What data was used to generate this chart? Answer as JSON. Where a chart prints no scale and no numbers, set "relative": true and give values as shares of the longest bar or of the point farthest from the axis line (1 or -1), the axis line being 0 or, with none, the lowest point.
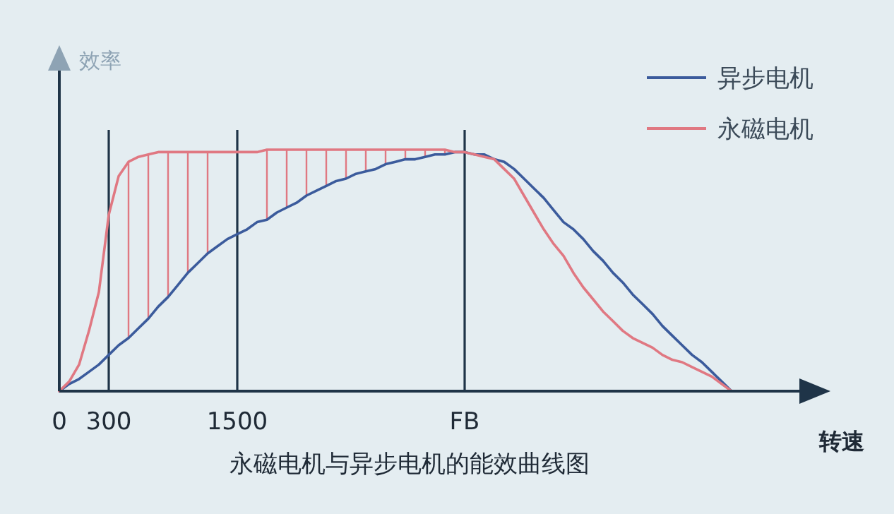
{
  "chart_data": {
    "type": "line",
    "title": "永磁电机与异步电机的能效曲线图",
    "xlabel": "转速",
    "ylabel": "效率",
    "relative": true,
    "tick_labels": "x",
    "legend": "top right",
    "categories": [
      "0",
      null,
      null,
      null,
      null,
      "300",
      null,
      null,
      null,
      null,
      null,
      null,
      null,
      null,
      null,
      null,
      null,
      null,
      "1500",
      null,
      null,
      null,
      null,
      null,
      null,
      null,
      null,
      null,
      null,
      null,
      null,
      null,
      null,
      null,
      null,
      null,
      null,
      null,
      null,
      null,
      null,
      "FB",
      null,
      null,
      null,
      null,
      null,
      null,
      null,
      null,
      null,
      null,
      null,
      null,
      null,
      null,
      null,
      null,
      null,
      null,
      null,
      null,
      null,
      null,
      null,
      null,
      null,
      null,
      null
    ],
    "series": [
      {
        "name": "异步电机",
        "color": "#3b5b9c",
        "values": [
          0,
          0.03,
          0.05,
          0.08,
          0.11,
          0.15,
          0.19,
          0.22,
          0.26,
          0.3,
          0.35,
          0.39,
          0.44,
          0.49,
          0.53,
          0.57,
          0.6,
          0.63,
          0.65,
          0.67,
          0.7,
          0.71,
          0.74,
          0.76,
          0.78,
          0.81,
          0.83,
          0.85,
          0.87,
          0.88,
          0.9,
          0.91,
          0.92,
          0.94,
          0.95,
          0.96,
          0.96,
          0.97,
          0.98,
          0.98,
          0.99,
          0.99,
          0.98,
          0.98,
          0.96,
          0.95,
          0.92,
          0.88,
          0.84,
          0.8,
          0.75,
          0.7,
          0.67,
          0.63,
          0.58,
          0.54,
          0.49,
          0.45,
          0.4,
          0.36,
          0.32,
          0.27,
          0.23,
          0.19,
          0.15,
          0.12,
          0.08,
          0.04,
          0
        ]
      },
      {
        "name": "永磁电机",
        "color": "#e07882",
        "values": [
          0,
          0.04,
          0.11,
          0.25,
          0.41,
          0.73,
          0.89,
          0.95,
          0.97,
          0.98,
          0.99,
          0.99,
          0.99,
          0.99,
          0.99,
          0.99,
          0.99,
          0.99,
          0.99,
          0.99,
          0.99,
          1.0,
          1.0,
          1.0,
          1.0,
          1.0,
          1.0,
          1.0,
          1.0,
          1.0,
          1.0,
          1.0,
          1.0,
          1.0,
          1.0,
          1.0,
          1.0,
          1.0,
          1.0,
          1.0,
          0.99,
          0.99,
          0.98,
          0.97,
          0.96,
          0.92,
          0.88,
          0.81,
          0.74,
          0.67,
          0.61,
          0.56,
          0.49,
          0.43,
          0.38,
          0.33,
          0.29,
          0.25,
          0.22,
          0.2,
          0.18,
          0.15,
          0.13,
          0.12,
          0.1,
          0.08,
          0.06,
          0.03,
          0
        ]
      }
    ],
    "ref_lines": [
      {
        "axis": "x",
        "value": "300",
        "color": "#1f3448"
      },
      {
        "axis": "x",
        "value": "1500",
        "color": "#1f3448"
      },
      {
        "axis": "x",
        "value": "FB",
        "color": "#1f3448"
      }
    ]
  }
}
